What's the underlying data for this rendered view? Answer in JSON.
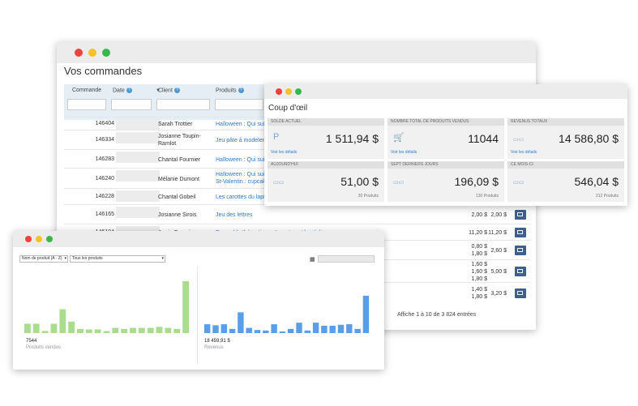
{
  "orders_window": {
    "title": "Vos commandes",
    "columns": [
      {
        "label": "Commande",
        "help": false
      },
      {
        "label": "Date",
        "help": true
      },
      {
        "label": "Client",
        "help": true
      },
      {
        "label": "Produits",
        "help": true
      }
    ],
    "rows": [
      {
        "id": "146404",
        "client": "Sarah Trottier",
        "products": "Halloween : Qui suis",
        "p1": "",
        "p2": ""
      },
      {
        "id": "146334",
        "client": "Josianne Toupin-Ramlot",
        "products": "Jeu pâte à modeler",
        "p1": "",
        "p2": ""
      },
      {
        "id": "146283",
        "client": "Chantal Fournier",
        "products": "Halloween : Qui suis",
        "p1": "",
        "p2": ""
      },
      {
        "id": "146240",
        "client": "Mélanie Dumont",
        "products": "Halloween : Qui suis\nSt-Valentin : cupcak",
        "p1": "",
        "p2": ""
      },
      {
        "id": "146228",
        "client": "Chantal Gobeil",
        "products": "Les carottes du lapin",
        "p1": "",
        "p2": ""
      },
      {
        "id": "146165",
        "client": "Josianne Sirois",
        "products": "Jeu des lettres",
        "p1": "2,00 $",
        "p2": "2,00 $"
      },
      {
        "id": "146104",
        "client": "Annie Fournier",
        "products": "Ensemble thématique : Insectes et bestioles",
        "p1": "11,20 $",
        "p2": "11,20 $"
      },
      {
        "id": "",
        "client": "",
        "products": "",
        "p1": "0,80 $\n1,80 $",
        "p2": "2,60 $"
      },
      {
        "id": "",
        "client": "",
        "products": "",
        "p1": "1,60 $\n1,60 $\n1,80 $",
        "p2": "5,00 $"
      },
      {
        "id": "",
        "client": "",
        "products": "",
        "p1": "1,40 $\n1,80 $",
        "p2": "3,20 $"
      }
    ],
    "footer": "Affiche 1 à 10 de 3 824 entrées"
  },
  "glance_window": {
    "title": "Coup d'œil",
    "cards": [
      {
        "header": "Solde actuel",
        "value": "1 511,94 $",
        "link": "Voir les détails",
        "sub": "",
        "icon": "paypal-icon"
      },
      {
        "header": "Nombre total de produits vendus",
        "value": "11044",
        "link": "Voir les détails",
        "sub": "",
        "icon": "cart-icon"
      },
      {
        "header": "Revenus totaux",
        "value": "14 586,80 $",
        "link": "Voir les détails",
        "sub": "",
        "icon": "card-icon"
      },
      {
        "header": "Aujourd'hui",
        "value": "51,00 $",
        "link": "",
        "sub": "30 Produits",
        "icon": "card-icon"
      },
      {
        "header": "Sept derniers jours",
        "value": "196,09 $",
        "link": "",
        "sub": "130 Produits",
        "icon": "card-icon"
      },
      {
        "header": "Ce mois-ci",
        "value": "546,04 $",
        "link": "",
        "sub": "312 Produits",
        "icon": "card-icon"
      }
    ]
  },
  "products_window": {
    "sort_select": "Nom de produit (A - Z)",
    "filter_select": "Tous les produits",
    "date_field": "",
    "left_stat_value": "7544",
    "left_stat_label": "Produits vendus",
    "right_stat_value": "18 459,91 $",
    "right_stat_label": "Revenus",
    "colors": {
      "green": "#a9dc8d",
      "blue": "#5a9ee8"
    }
  },
  "chart_data": [
    {
      "type": "bar",
      "series": [
        {
          "values": [
            0.18,
            0.18,
            0.04,
            0.18,
            0.46,
            0.22,
            0.08,
            0.07,
            0.07,
            0.04,
            0.1,
            0.08,
            0.1,
            0.1,
            0.1,
            0.12,
            0.1,
            0.08,
            1.0
          ]
        }
      ]
    },
    {
      "type": "bar",
      "series": [
        {
          "values": [
            0.17,
            0.15,
            0.17,
            0.08,
            0.4,
            0.1,
            0.06,
            0.05,
            0.17,
            0.03,
            0.08,
            0.2,
            0.05,
            0.2,
            0.14,
            0.14,
            0.16,
            0.17,
            0.08,
            0.72
          ]
        }
      ]
    }
  ]
}
